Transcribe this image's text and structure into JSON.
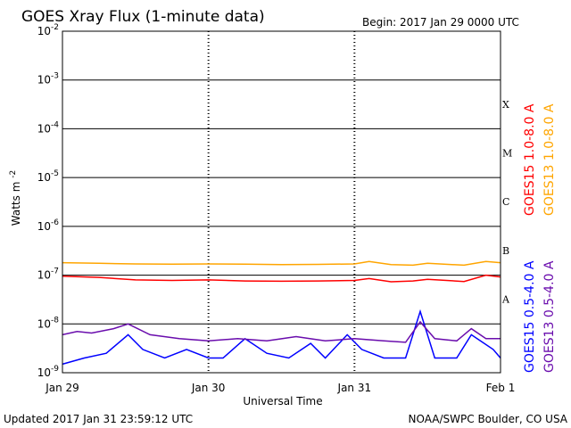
{
  "header": {
    "title": "GOES Xray Flux (1-minute data)",
    "begin_label": "Begin:  2017 Jan 29 0000 UTC"
  },
  "footer": {
    "updated": "Updated 2017 Jan 31 23:59:12 UTC",
    "credit": "NOAA/SWPC Boulder, CO USA"
  },
  "chart_data": {
    "type": "line",
    "title": "GOES Xray Flux (1-minute data)",
    "xlabel": "Universal Time",
    "ylabel_base": "Watts m",
    "ylabel_exp": "-2",
    "yscale": "log",
    "ylim": [
      1e-09,
      0.01
    ],
    "xlim_days": [
      0,
      3
    ],
    "y_ticks": [
      {
        "value": 0.01,
        "base": "10",
        "exp": "-2"
      },
      {
        "value": 0.001,
        "base": "10",
        "exp": "-3"
      },
      {
        "value": 0.0001,
        "base": "10",
        "exp": "-4"
      },
      {
        "value": 1e-05,
        "base": "10",
        "exp": "-5"
      },
      {
        "value": 1e-06,
        "base": "10",
        "exp": "-6"
      },
      {
        "value": 1e-07,
        "base": "10",
        "exp": "-7"
      },
      {
        "value": 1e-08,
        "base": "10",
        "exp": "-8"
      },
      {
        "value": 1e-09,
        "base": "10",
        "exp": "-9"
      }
    ],
    "x_ticks": [
      {
        "day": 0,
        "label": "Jan 29"
      },
      {
        "day": 1,
        "label": "Jan 30"
      },
      {
        "day": 2,
        "label": "Jan 31"
      },
      {
        "day": 3,
        "label": "Feb 1"
      }
    ],
    "flare_classes": [
      {
        "label": "X",
        "value": 0.00032
      },
      {
        "label": "M",
        "value": 3.2e-05
      },
      {
        "label": "C",
        "value": 3.2e-06
      },
      {
        "label": "B",
        "value": 3.2e-07
      },
      {
        "label": "A",
        "value": 3.2e-08
      }
    ],
    "grid": true,
    "legend_position": "right",
    "series": [
      {
        "name": "GOES15 1.0-8.0 A",
        "color": "#ff0000",
        "x": [
          0,
          0.25,
          0.5,
          0.75,
          1.0,
          1.25,
          1.5,
          1.75,
          2.0,
          2.1,
          2.25,
          2.4,
          2.5,
          2.75,
          2.9,
          3.0
        ],
        "y": [
          9.5e-08,
          9e-08,
          8e-08,
          7.8e-08,
          8e-08,
          7.6e-08,
          7.5e-08,
          7.6e-08,
          7.8e-08,
          8.5e-08,
          7.3e-08,
          7.6e-08,
          8.2e-08,
          7.4e-08,
          1e-07,
          9.2e-08
        ]
      },
      {
        "name": "GOES13 1.0-8.0 A",
        "color": "#ffa500",
        "x": [
          0,
          0.25,
          0.5,
          0.75,
          1.0,
          1.25,
          1.5,
          1.75,
          2.0,
          2.1,
          2.25,
          2.4,
          2.5,
          2.75,
          2.9,
          3.0
        ],
        "y": [
          1.8e-07,
          1.75e-07,
          1.7e-07,
          1.68e-07,
          1.7e-07,
          1.68e-07,
          1.65e-07,
          1.66e-07,
          1.7e-07,
          1.9e-07,
          1.65e-07,
          1.6e-07,
          1.75e-07,
          1.6e-07,
          1.9e-07,
          1.8e-07
        ]
      },
      {
        "name": "GOES15 0.5-4.0 A",
        "color": "#0000ff",
        "x": [
          0,
          0.15,
          0.3,
          0.45,
          0.55,
          0.7,
          0.85,
          1.0,
          1.1,
          1.25,
          1.4,
          1.55,
          1.7,
          1.8,
          1.95,
          2.05,
          2.2,
          2.35,
          2.45,
          2.55,
          2.7,
          2.8,
          2.95,
          3.0
        ],
        "y": [
          1.5e-09,
          2e-09,
          2.5e-09,
          6e-09,
          3e-09,
          2e-09,
          3e-09,
          2e-09,
          2e-09,
          5e-09,
          2.5e-09,
          2e-09,
          4e-09,
          2e-09,
          6e-09,
          3e-09,
          2e-09,
          2e-09,
          1.8e-08,
          2e-09,
          2e-09,
          6e-09,
          3e-09,
          2e-09
        ]
      },
      {
        "name": "GOES13 0.5-4.0 A",
        "color": "#6a0dad",
        "x": [
          0,
          0.1,
          0.2,
          0.35,
          0.45,
          0.6,
          0.8,
          1.0,
          1.2,
          1.4,
          1.6,
          1.8,
          2.0,
          2.2,
          2.35,
          2.45,
          2.55,
          2.7,
          2.8,
          2.9,
          3.0
        ],
        "y": [
          6e-09,
          7e-09,
          6.5e-09,
          8e-09,
          1e-08,
          6e-09,
          5e-09,
          4.5e-09,
          5e-09,
          4.5e-09,
          5.5e-09,
          4.5e-09,
          5e-09,
          4.5e-09,
          4.2e-09,
          1.1e-08,
          5e-09,
          4.5e-09,
          8e-09,
          5e-09,
          5e-09
        ]
      }
    ]
  }
}
